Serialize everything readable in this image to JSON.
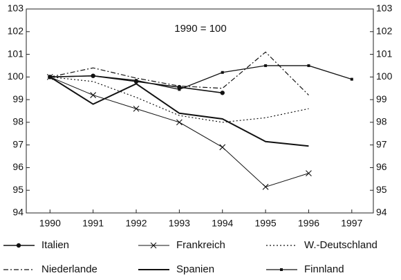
{
  "chart_data": {
    "type": "line",
    "annotation": "1990 = 100",
    "x": [
      1990,
      1991,
      1992,
      1993,
      1994,
      1995,
      1996,
      1997
    ],
    "xlim": [
      1989.45,
      1997.5
    ],
    "xticks": [
      1990,
      1991,
      1992,
      1993,
      1994,
      1995,
      1996,
      1997
    ],
    "ylim": [
      94,
      103
    ],
    "yticks": [
      94,
      95,
      96,
      97,
      98,
      99,
      100,
      101,
      102,
      103
    ],
    "y2lim": [
      94,
      103
    ],
    "y2ticks": [
      94,
      95,
      96,
      97,
      98,
      99,
      100,
      101,
      102,
      103
    ],
    "grid": false,
    "legend": "bottom",
    "series": [
      {
        "name": "Italien",
        "color": "#111111",
        "dash": "solid",
        "width": 1.6,
        "marker": "circle",
        "values": [
          100,
          100.05,
          99.8,
          99.55,
          99.3,
          null,
          null,
          null
        ]
      },
      {
        "name": "Frankreich",
        "color": "#111111",
        "dash": "solid",
        "width": 1,
        "marker": "cross",
        "values": [
          100,
          99.2,
          98.6,
          98.0,
          96.9,
          95.15,
          95.75,
          null
        ]
      },
      {
        "name": "W.-Deutschland",
        "color": "#111111",
        "dash": "dotted",
        "width": 1.2,
        "marker": "none",
        "values": [
          100,
          99.8,
          99.1,
          98.3,
          98.0,
          98.2,
          98.6,
          null
        ]
      },
      {
        "name": "Niederlande",
        "color": "#111111",
        "dash": "dashdot",
        "width": 1.2,
        "marker": "none",
        "values": [
          100,
          100.4,
          99.95,
          99.6,
          99.5,
          101.1,
          99.2,
          null
        ]
      },
      {
        "name": "Spanien",
        "color": "#111111",
        "dash": "solid",
        "width": 2,
        "marker": "none",
        "values": [
          100,
          98.8,
          99.7,
          98.4,
          98.15,
          97.15,
          96.95,
          null
        ]
      },
      {
        "name": "Finnland",
        "color": "#111111",
        "dash": "solid",
        "width": 1.3,
        "marker": "square",
        "values": [
          100,
          100.05,
          99.85,
          99.45,
          100.2,
          100.5,
          100.5,
          99.9
        ]
      }
    ]
  }
}
